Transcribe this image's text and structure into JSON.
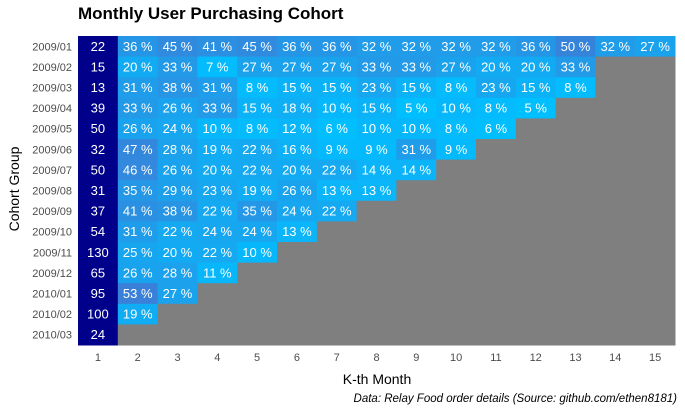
{
  "chart_data": {
    "type": "heatmap",
    "title": "Monthly User Purchasing Cohort",
    "xlabel": "K-th Month",
    "ylabel": "Cohort Group",
    "caption": "Data: Relay Food order details (Source: github.com/ethen8181)",
    "x_categories": [
      "1",
      "2",
      "3",
      "4",
      "5",
      "6",
      "7",
      "8",
      "9",
      "10",
      "11",
      "12",
      "13",
      "14",
      "15"
    ],
    "y_categories": [
      "2009/01",
      "2009/02",
      "2009/03",
      "2009/04",
      "2009/05",
      "2009/06",
      "2009/07",
      "2009/08",
      "2009/09",
      "2009/10",
      "2009/11",
      "2009/12",
      "2010/01",
      "2010/02",
      "2010/03"
    ],
    "cohort_sizes": [
      22,
      15,
      13,
      39,
      50,
      32,
      50,
      31,
      37,
      54,
      130,
      65,
      95,
      100,
      24
    ],
    "retention_labels": [
      [
        "36 %",
        "45 %",
        "41 %",
        "45 %",
        "36 %",
        "36 %",
        "32 %",
        "32 %",
        "32 %",
        "32 %",
        "36 %",
        "50 %",
        "32 %",
        "27 %"
      ],
      [
        "20 %",
        "33 %",
        "7 %",
        "27 %",
        "27 %",
        "27 %",
        "33 %",
        "33 %",
        "27 %",
        "20 %",
        "20 %",
        "33 %"
      ],
      [
        "31 %",
        "38 %",
        "31 %",
        "8 %",
        "15 %",
        "15 %",
        "23 %",
        "15 %",
        "8 %",
        "23 %",
        "15 %",
        "8 %"
      ],
      [
        "33 %",
        "26 %",
        "33 %",
        "15 %",
        "18 %",
        "10 %",
        "15 %",
        "5 %",
        "10 %",
        "8 %",
        "5 %"
      ],
      [
        "26 %",
        "24 %",
        "10 %",
        "8 %",
        "12 %",
        "6 %",
        "10 %",
        "10 %",
        "8 %",
        "6 %"
      ],
      [
        "47 %",
        "28 %",
        "19 %",
        "22 %",
        "16 %",
        "9 %",
        "9 %",
        "31 %",
        "9 %"
      ],
      [
        "46 %",
        "26 %",
        "20 %",
        "22 %",
        "20 %",
        "22 %",
        "14 %",
        "14 %"
      ],
      [
        "35 %",
        "29 %",
        "23 %",
        "19 %",
        "26 %",
        "13 %",
        "13 %"
      ],
      [
        "41 %",
        "38 %",
        "22 %",
        "35 %",
        "24 %",
        "22 %"
      ],
      [
        "31 %",
        "22 %",
        "24 %",
        "24 %",
        "13 %"
      ],
      [
        "25 %",
        "20 %",
        "22 %",
        "10 %"
      ],
      [
        "26 %",
        "28 %",
        "11 %"
      ],
      [
        "53 %",
        "27 %"
      ],
      [
        "19 %"
      ],
      []
    ],
    "retention_values": [
      [
        36,
        45,
        41,
        45,
        36,
        36,
        32,
        32,
        32,
        32,
        36,
        50,
        32,
        27
      ],
      [
        20,
        33,
        7,
        27,
        27,
        27,
        33,
        33,
        27,
        20,
        20,
        33
      ],
      [
        31,
        38,
        31,
        8,
        15,
        15,
        23,
        15,
        8,
        23,
        15,
        8
      ],
      [
        33,
        26,
        33,
        15,
        18,
        10,
        15,
        5,
        10,
        8,
        5
      ],
      [
        26,
        24,
        10,
        8,
        12,
        6,
        10,
        10,
        8,
        6
      ],
      [
        47,
        28,
        19,
        22,
        16,
        9,
        9,
        31,
        9
      ],
      [
        46,
        26,
        20,
        22,
        20,
        22,
        14,
        14
      ],
      [
        35,
        29,
        23,
        19,
        26,
        13,
        13
      ],
      [
        41,
        38,
        22,
        35,
        24,
        22
      ],
      [
        31,
        22,
        24,
        24,
        13
      ],
      [
        25,
        20,
        22,
        10
      ],
      [
        26,
        28,
        11
      ],
      [
        53,
        27
      ],
      [
        19
      ],
      []
    ],
    "colors": {
      "first_column": "#00008B",
      "na_fill": "#7F7F7F",
      "scale_low": "#00BFFF",
      "scale_high": "#3A80D8",
      "text": "#FFFFFF",
      "tick_text": "#4D4D4D"
    },
    "legend": "none",
    "grid": false
  }
}
